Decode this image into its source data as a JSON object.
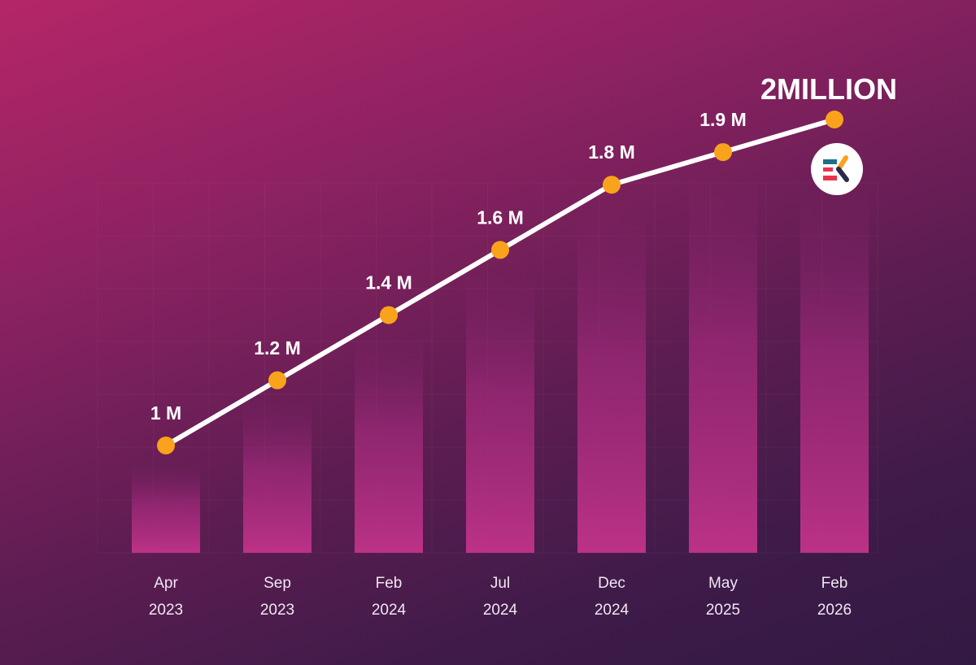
{
  "chart_data": {
    "type": "line",
    "categories": [
      "Apr 2023",
      "Sep 2023",
      "Feb 2024",
      "Jul 2024",
      "Dec 2024",
      "May 2025",
      "Feb 2026"
    ],
    "tick_labels": [
      [
        "Apr",
        "2023"
      ],
      [
        "Sep",
        "2023"
      ],
      [
        "Feb",
        "2024"
      ],
      [
        "Jul",
        "2024"
      ],
      [
        "Dec",
        "2024"
      ],
      [
        "May",
        "2025"
      ],
      [
        "Feb",
        "2026"
      ]
    ],
    "values": [
      1.0,
      1.2,
      1.4,
      1.6,
      1.8,
      1.9,
      2.0
    ],
    "data_labels": [
      "1 M",
      "1.2 M",
      "1.4 M",
      "1.6 M",
      "1.8 M",
      "1.9 M",
      "2MILLION"
    ],
    "unit": "M",
    "title": "",
    "xlabel": "",
    "ylabel": "",
    "ylim": [
      1.0,
      2.0
    ],
    "grid": true,
    "bars_under_line": true,
    "colors": {
      "line": "#ffffff",
      "marker": "#f9a21b",
      "bar": "#c2338a"
    }
  },
  "logo": {
    "text": "EK",
    "colors": [
      "#1f6f8b",
      "#e8344e",
      "#f9a21b",
      "#2a2a4a"
    ]
  }
}
